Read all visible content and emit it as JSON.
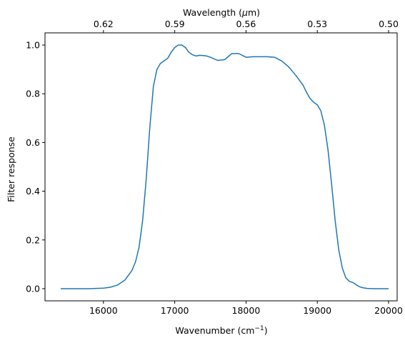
{
  "chart_data": {
    "type": "line",
    "xlabel": "Wavenumber (cm",
    "xlabel_sup": "−1",
    "xlabel_close": ")",
    "ylabel": "Filter response",
    "top_xlabel": "Wavelength (",
    "top_xlabel_mu": "μ",
    "top_xlabel_close": "m)",
    "xlim": [
      15180,
      20120
    ],
    "ylim": [
      -0.05,
      1.05
    ],
    "xticks": [
      16000,
      17000,
      18000,
      19000,
      20000
    ],
    "yticks": [
      0.0,
      0.2,
      0.4,
      0.6,
      0.8,
      1.0
    ],
    "top_ticks": [
      {
        "label": "0.62",
        "x": 16000
      },
      {
        "label": "0.59",
        "x": 17000
      },
      {
        "label": "0.56",
        "x": 18000
      },
      {
        "label": "0.53",
        "x": 19000
      },
      {
        "label": "0.50",
        "x": 20000
      }
    ],
    "grid": false,
    "color": "#1f77b4",
    "series": [
      {
        "x": [
          15400,
          15800,
          16000,
          16100,
          16200,
          16300,
          16400,
          16450,
          16500,
          16550,
          16600,
          16650,
          16700,
          16750,
          16800,
          16850,
          16900,
          16950,
          17000,
          17050,
          17100,
          17150,
          17200,
          17250,
          17300,
          17350,
          17400,
          17450,
          17500,
          17600,
          17700,
          17800,
          17900,
          18000,
          18100,
          18200,
          18300,
          18400,
          18500,
          18600,
          18700,
          18800,
          18850,
          18900,
          18950,
          19000,
          19050,
          19100,
          19150,
          19200,
          19250,
          19300,
          19350,
          19400,
          19450,
          19500,
          19550,
          19600,
          19650,
          19700,
          19800,
          19900,
          20000
        ],
        "y": [
          0.0,
          0.0,
          0.002,
          0.006,
          0.015,
          0.035,
          0.075,
          0.11,
          0.17,
          0.28,
          0.45,
          0.66,
          0.83,
          0.9,
          0.925,
          0.935,
          0.945,
          0.97,
          0.99,
          1.0,
          1.0,
          0.99,
          0.97,
          0.96,
          0.955,
          0.958,
          0.957,
          0.955,
          0.95,
          0.937,
          0.94,
          0.965,
          0.965,
          0.95,
          0.952,
          0.952,
          0.952,
          0.95,
          0.935,
          0.91,
          0.875,
          0.835,
          0.805,
          0.78,
          0.765,
          0.755,
          0.73,
          0.67,
          0.57,
          0.43,
          0.28,
          0.16,
          0.085,
          0.045,
          0.03,
          0.025,
          0.015,
          0.007,
          0.003,
          0.001,
          0.0,
          0.0,
          0.0
        ]
      }
    ]
  }
}
